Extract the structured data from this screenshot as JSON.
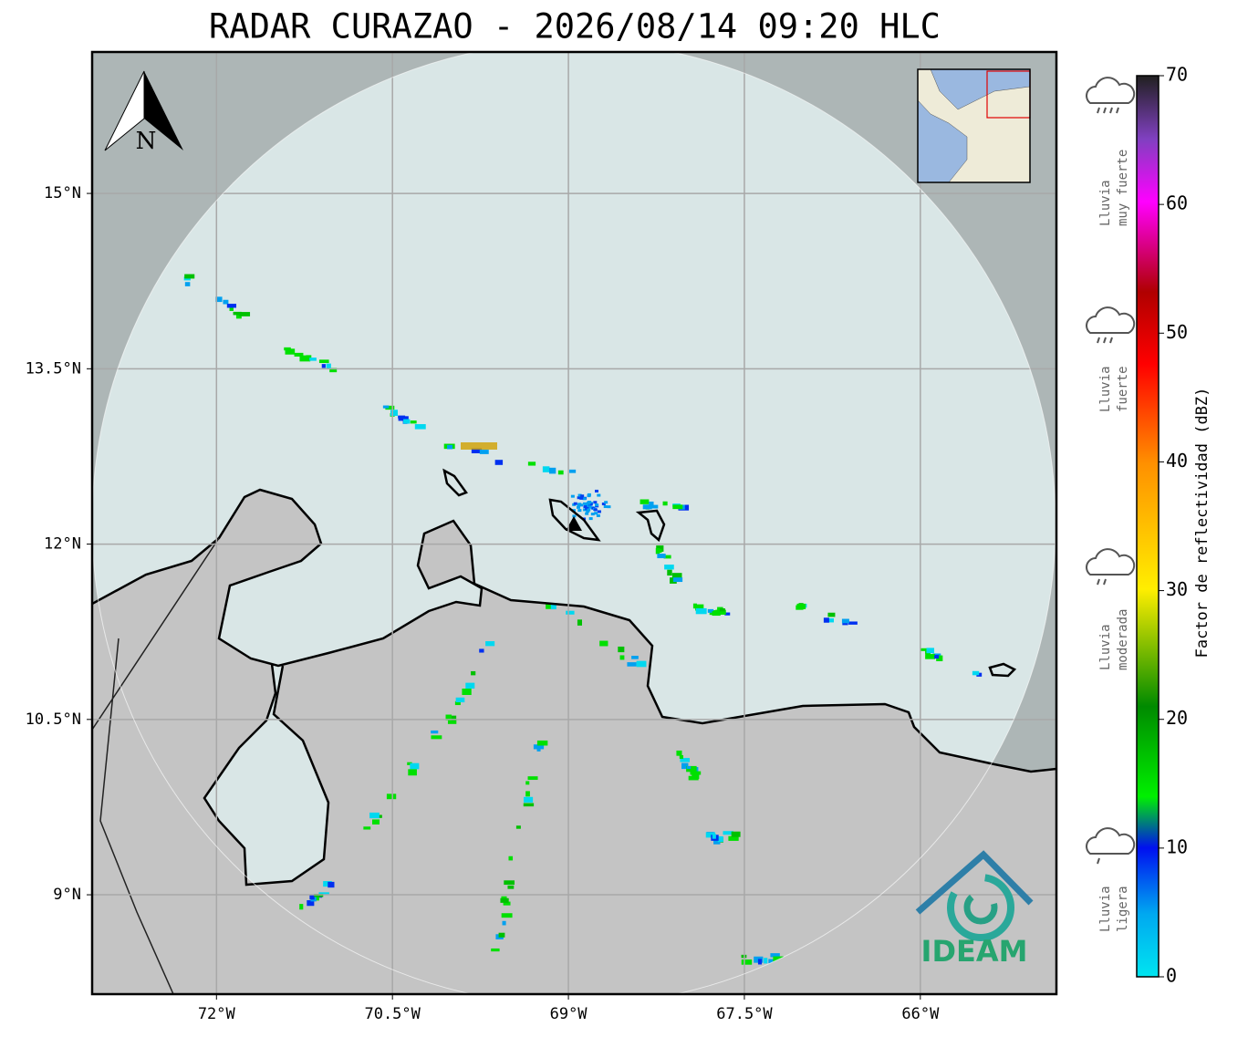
{
  "title": "RADAR CURAZAO - 2026/08/14 09:20 HLC",
  "map": {
    "latlim": [
      8.15,
      16.21
    ],
    "lonlim": [
      -73.06,
      -64.84
    ],
    "lat_ticks": [
      {
        "value": 15,
        "label": "15°N"
      },
      {
        "value": 13.5,
        "label": "13.5°N"
      },
      {
        "value": 12,
        "label": "12°N"
      },
      {
        "value": 10.5,
        "label": "10.5°N"
      },
      {
        "value": 9,
        "label": "9°N"
      }
    ],
    "lon_ticks": [
      {
        "value": -72,
        "label": "72°W"
      },
      {
        "value": -70.5,
        "label": "70.5°W"
      },
      {
        "value": -69,
        "label": "69°W"
      },
      {
        "value": -67.5,
        "label": "67.5°W"
      },
      {
        "value": -66,
        "label": "66°W"
      }
    ],
    "grid": true,
    "north": "N",
    "logo": "IDEAM"
  },
  "colorbar": {
    "label": "Factor de reflectividad (dBZ)",
    "lim": [
      0,
      70
    ],
    "ticks": [
      0,
      10,
      20,
      30,
      40,
      50,
      60,
      70
    ]
  },
  "legend": [
    {
      "lines": [
        "Lluvia",
        "muy fuerte"
      ]
    },
    {
      "lines": [
        "Lluvia",
        "fuerte"
      ]
    },
    {
      "lines": [
        "Lluvia",
        "moderada"
      ]
    },
    {
      "lines": [
        "Lluvia",
        "ligera"
      ]
    }
  ]
}
